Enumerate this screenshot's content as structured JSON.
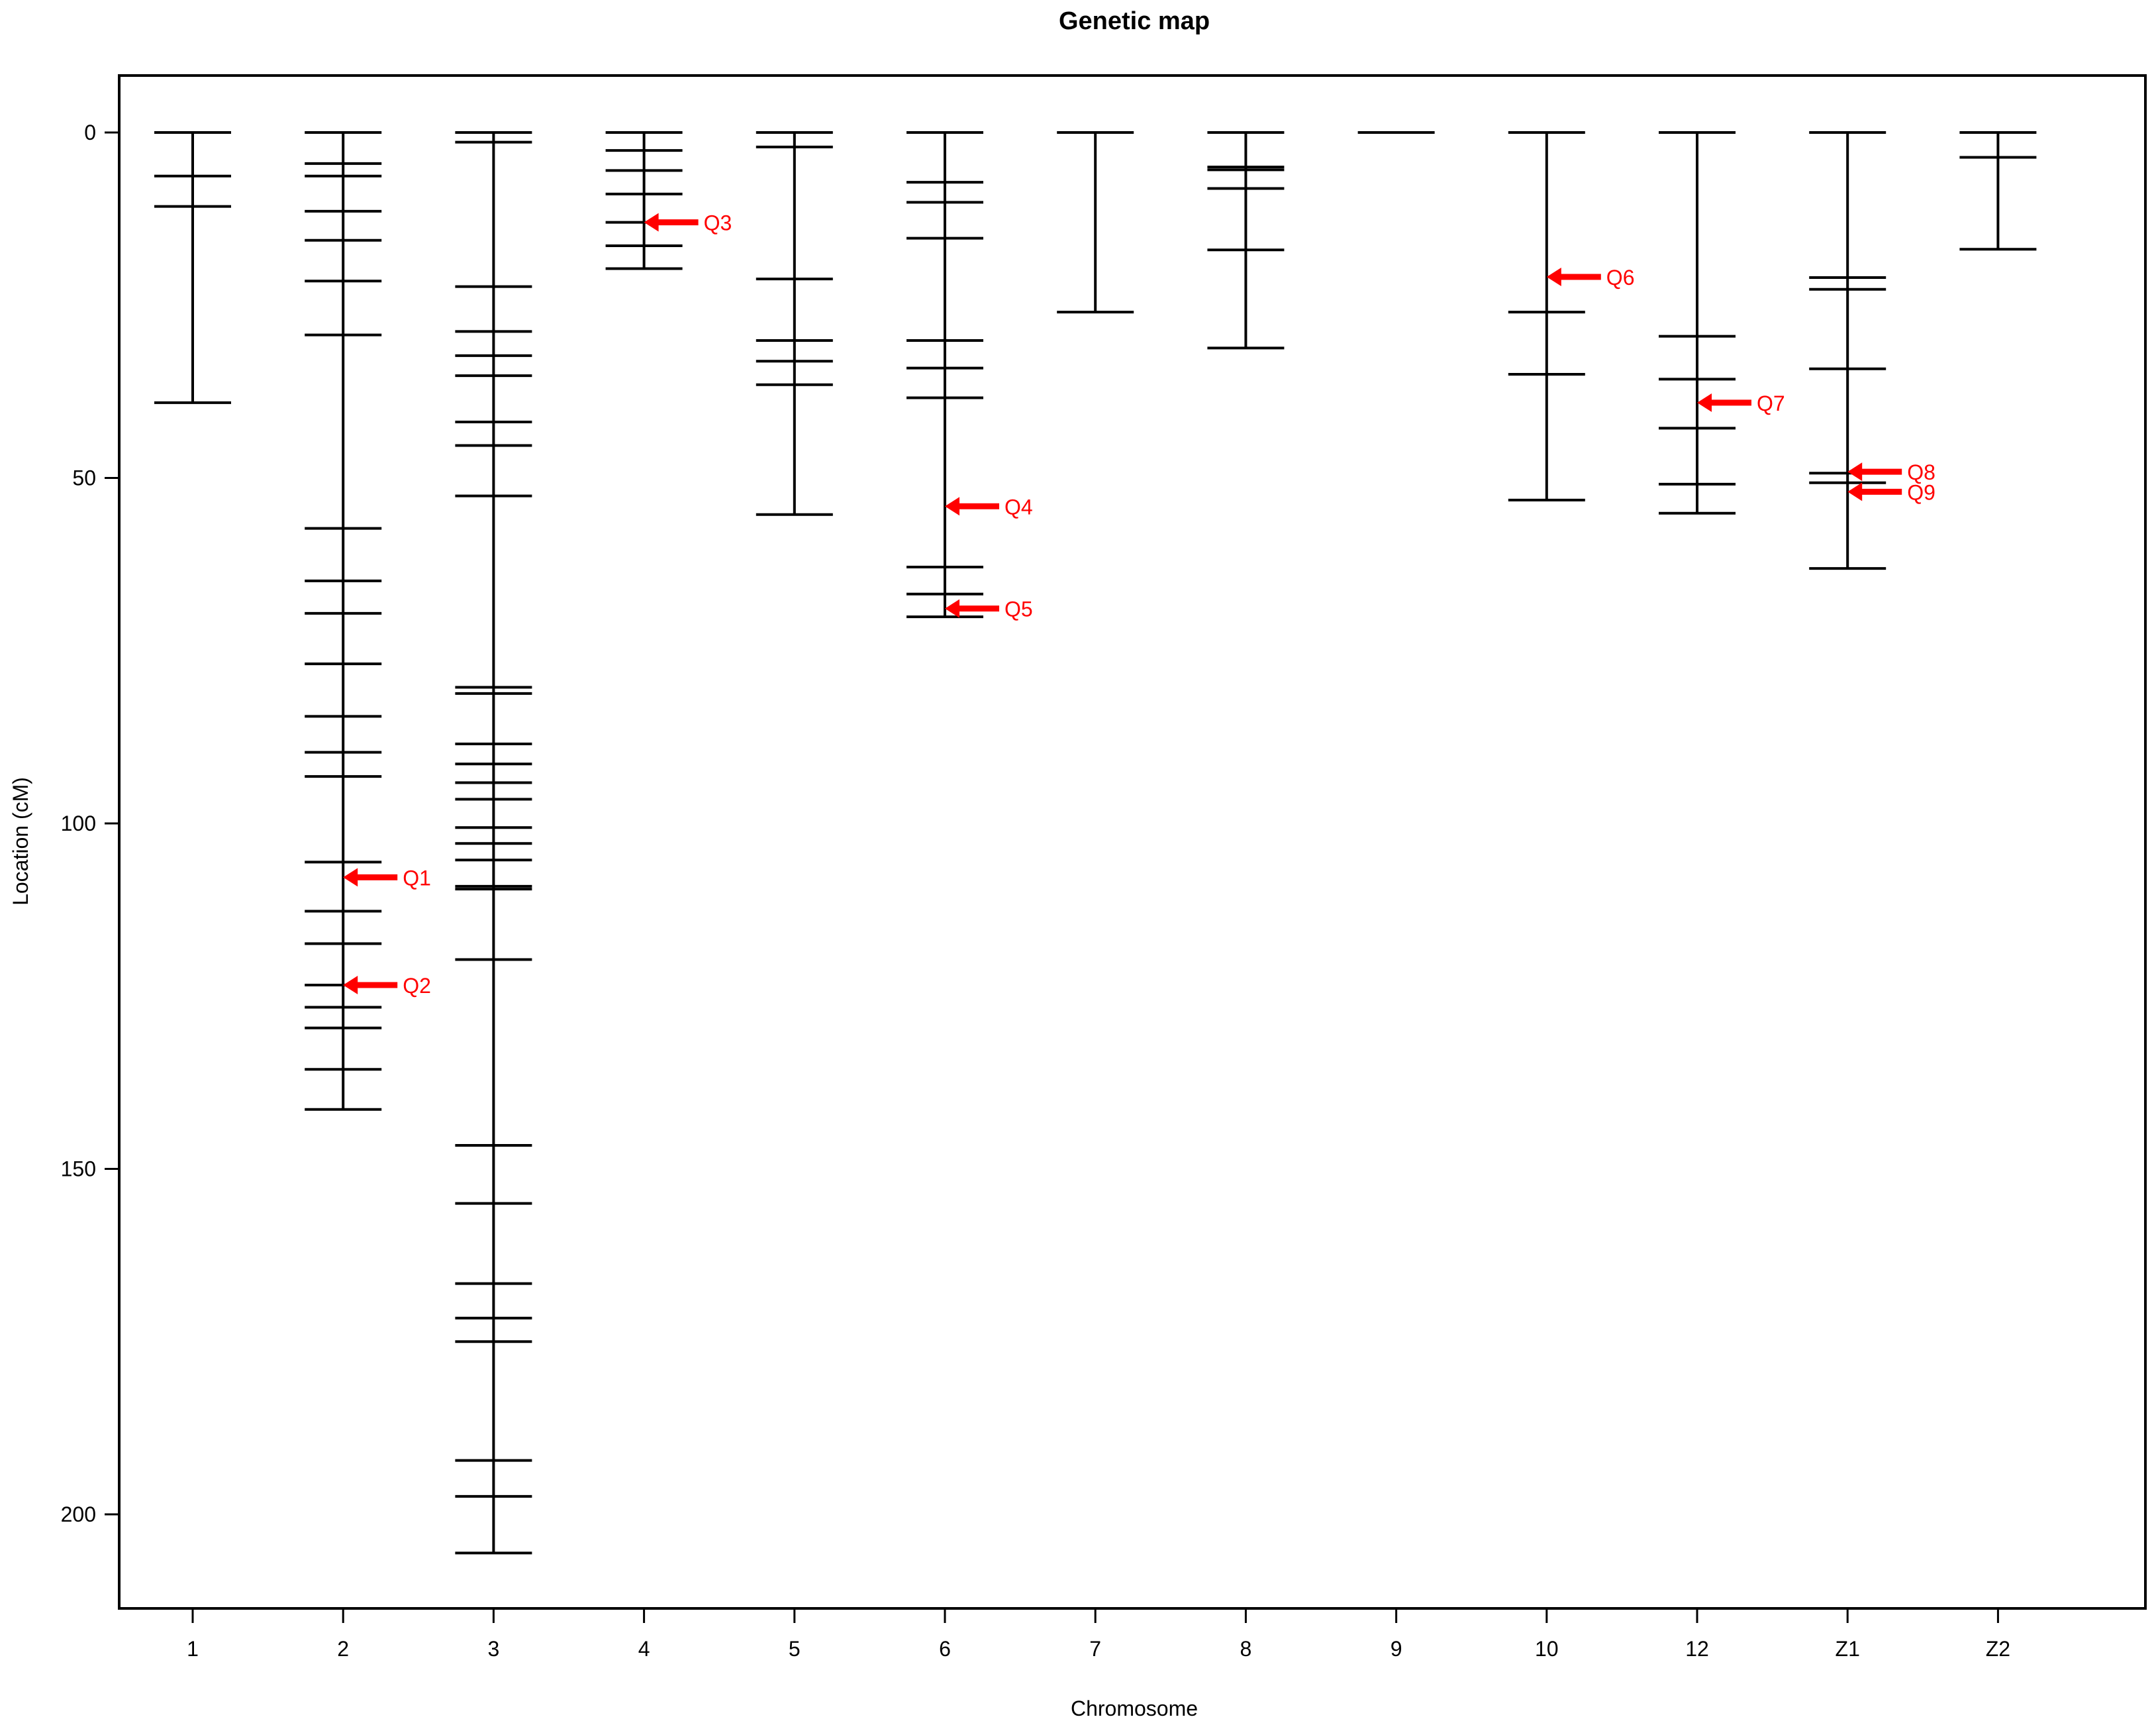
{
  "chart_data": {
    "type": "genetic-map",
    "title": "Genetic map",
    "xlabel": "Chromosome",
    "ylabel": "Location (cM)",
    "ylim": [
      -8,
      213
    ],
    "y_ticks": [
      "0",
      "50",
      "100",
      "150",
      "200"
    ],
    "y_tick_values": [
      0,
      50,
      100,
      150,
      200
    ],
    "line_color": "#000000",
    "qtl_color": "#ff0000",
    "chromosomes": [
      {
        "name": "1",
        "markers": [
          0,
          6.3,
          10.7,
          39.1
        ]
      },
      {
        "name": "2",
        "markers": [
          0,
          4.5,
          6.3,
          11.4,
          15.6,
          21.5,
          29.3,
          57.3,
          64.9,
          69.6,
          76.9,
          84.5,
          89.7,
          93.2,
          105.6,
          112.7,
          117.4,
          123.4,
          126.6,
          129.6,
          135.6,
          141.4
        ]
      },
      {
        "name": "3",
        "markers": [
          0,
          1.4,
          22.3,
          28.8,
          32.3,
          35.2,
          41.9,
          45.3,
          52.6,
          80.3,
          81.2,
          88.5,
          91.4,
          94.1,
          96.5,
          100.6,
          102.9,
          105.3,
          109.1,
          109.5,
          119.7,
          146.6,
          155.0,
          166.6,
          171.6,
          175.0,
          192.2,
          197.4,
          205.6
        ]
      },
      {
        "name": "4",
        "markers": [
          0,
          2.6,
          5.5,
          8.9,
          13.0,
          16.4,
          19.7
        ]
      },
      {
        "name": "5",
        "markers": [
          0,
          2.1,
          21.2,
          30.1,
          33.1,
          36.5,
          55.3
        ]
      },
      {
        "name": "6",
        "markers": [
          0,
          7.2,
          10.1,
          15.3,
          30.1,
          34.1,
          38.4,
          62.9,
          66.8,
          70.1
        ]
      },
      {
        "name": "7",
        "markers": [
          0,
          26.0
        ]
      },
      {
        "name": "8",
        "markers": [
          0,
          5.0,
          5.4,
          8.1,
          17.0,
          31.2
        ]
      },
      {
        "name": "9",
        "markers": [
          0
        ]
      },
      {
        "name": "10",
        "markers": [
          0,
          26.0,
          35.0,
          53.2
        ]
      },
      {
        "name": "12",
        "markers": [
          0,
          29.5,
          35.7,
          42.8,
          50.9,
          55.1
        ]
      },
      {
        "name": "Z1",
        "markers": [
          0,
          21.0,
          22.7,
          34.2,
          49.3,
          50.7,
          63.1
        ]
      },
      {
        "name": "Z2",
        "markers": [
          0,
          3.6,
          16.9
        ]
      }
    ],
    "qtls": [
      {
        "label": "Q1",
        "chromosome": "2",
        "position": 107.8
      },
      {
        "label": "Q2",
        "chromosome": "2",
        "position": 123.4
      },
      {
        "label": "Q3",
        "chromosome": "4",
        "position": 13.0
      },
      {
        "label": "Q4",
        "chromosome": "6",
        "position": 54.1
      },
      {
        "label": "Q5",
        "chromosome": "6",
        "position": 68.9
      },
      {
        "label": "Q6",
        "chromosome": "10",
        "position": 20.9
      },
      {
        "label": "Q7",
        "chromosome": "12",
        "position": 39.1
      },
      {
        "label": "Q8",
        "chromosome": "Z1",
        "position": 49.1
      },
      {
        "label": "Q9",
        "chromosome": "Z1",
        "position": 52.0
      }
    ]
  }
}
